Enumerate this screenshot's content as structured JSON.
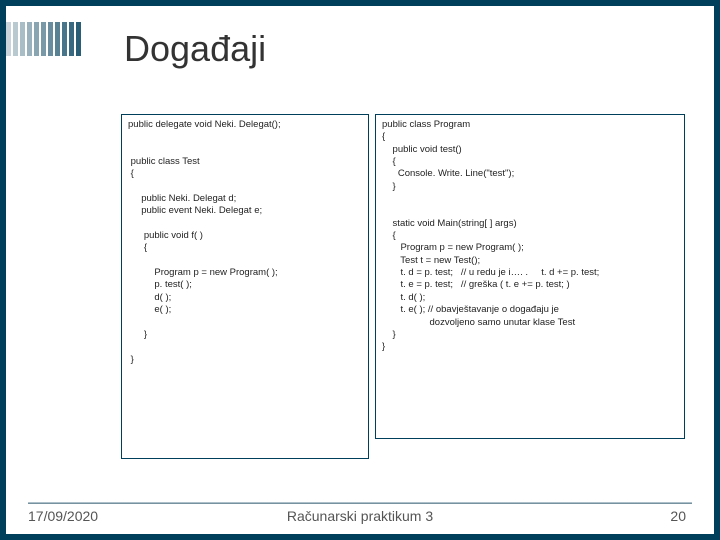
{
  "stripes": {
    "colors": [
      "#c9d5da",
      "#b9c9d0",
      "#a9bdc6",
      "#99b1bc",
      "#89a5b2",
      "#7999a8",
      "#698d9e",
      "#598194",
      "#49758a",
      "#396980",
      "#2a5d76"
    ],
    "count": 11
  },
  "title": "Događaji",
  "code_left": "public delegate void Neki. Delegat();\n\n\n public class Test\n {\n\n     public Neki. Delegat d;\n     public event Neki. Delegat e;\n\n      public void f( )\n      {\n\n          Program p = new Program( );\n          p. test( );\n          d( );\n          e( );\n\n      }\n\n }",
  "code_right": "public class Program\n{\n    public void test()\n    {\n      Console. Write. Line(\"test\");\n    }\n\n\n    static void Main(string[ ] args)\n    {\n       Program p = new Program( );\n       Test t = new Test();\n       t. d = p. test;   // u redu je i…. .     t. d += p. test;\n       t. e = p. test;   // greška ( t. e += p. test; )\n       t. d( );\n       t. e( ); // obavještavanje o događaju je\n                  dozvoljeno samo unutar klase Test\n    }\n}",
  "footer": {
    "date": "17/09/2020",
    "center": "Računarski praktikum 3",
    "page": "20"
  },
  "colors": {
    "slide_bg": "#ffffff",
    "page_bg": "#003f5c",
    "border": "#003f5c",
    "text": "#333333"
  }
}
